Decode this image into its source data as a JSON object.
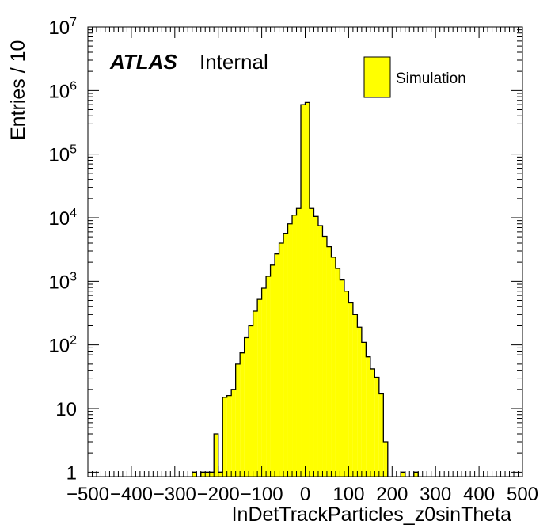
{
  "chart_data": {
    "type": "bar",
    "title": "",
    "xlabel": "InDetTrackParticles_z0sinTheta",
    "ylabel": "Entries / 10",
    "xlim": [
      -500,
      500
    ],
    "ylim": [
      0.85,
      10000000
    ],
    "yscale": "log",
    "x_ticks": [
      "−500",
      "−400",
      "−300",
      "−200",
      "−100",
      "0",
      "100",
      "200",
      "300",
      "400",
      "500"
    ],
    "y_ticks": [
      {
        "value": 1,
        "base": "1",
        "exp": ""
      },
      {
        "value": 10,
        "base": "10",
        "exp": ""
      },
      {
        "value": 100,
        "base": "10",
        "exp": "2"
      },
      {
        "value": 1000,
        "base": "10",
        "exp": "3"
      },
      {
        "value": 10000,
        "base": "10",
        "exp": "4"
      },
      {
        "value": 100000,
        "base": "10",
        "exp": "5"
      },
      {
        "value": 1000000,
        "base": "10",
        "exp": "6"
      },
      {
        "value": 10000000,
        "base": "10",
        "exp": "7"
      }
    ],
    "bin_width": 10,
    "bins": [
      {
        "x0": -260,
        "value": 1
      },
      {
        "x0": -240,
        "value": 1
      },
      {
        "x0": -230,
        "value": 1
      },
      {
        "x0": -220,
        "value": 1
      },
      {
        "x0": -210,
        "value": 4
      },
      {
        "x0": -200,
        "value": 1
      },
      {
        "x0": -190,
        "value": 15
      },
      {
        "x0": -180,
        "value": 16
      },
      {
        "x0": -170,
        "value": 20
      },
      {
        "x0": -160,
        "value": 50
      },
      {
        "x0": -150,
        "value": 75
      },
      {
        "x0": -140,
        "value": 130
      },
      {
        "x0": -130,
        "value": 200
      },
      {
        "x0": -120,
        "value": 340
      },
      {
        "x0": -110,
        "value": 520
      },
      {
        "x0": -100,
        "value": 780
      },
      {
        "x0": -90,
        "value": 1200
      },
      {
        "x0": -80,
        "value": 1800
      },
      {
        "x0": -70,
        "value": 2700
      },
      {
        "x0": -60,
        "value": 4000
      },
      {
        "x0": -50,
        "value": 5700
      },
      {
        "x0": -40,
        "value": 8000
      },
      {
        "x0": -30,
        "value": 11000
      },
      {
        "x0": -20,
        "value": 14000
      },
      {
        "x0": -10,
        "value": 600000
      },
      {
        "x0": 0,
        "value": 650000
      },
      {
        "x0": 10,
        "value": 14000
      },
      {
        "x0": 20,
        "value": 10500
      },
      {
        "x0": 30,
        "value": 7500
      },
      {
        "x0": 40,
        "value": 5100
      },
      {
        "x0": 50,
        "value": 3500
      },
      {
        "x0": 60,
        "value": 2400
      },
      {
        "x0": 70,
        "value": 1600
      },
      {
        "x0": 80,
        "value": 1050
      },
      {
        "x0": 90,
        "value": 700
      },
      {
        "x0": 100,
        "value": 460
      },
      {
        "x0": 110,
        "value": 300
      },
      {
        "x0": 120,
        "value": 190
      },
      {
        "x0": 130,
        "value": 110
      },
      {
        "x0": 140,
        "value": 65
      },
      {
        "x0": 150,
        "value": 42
      },
      {
        "x0": 160,
        "value": 31
      },
      {
        "x0": 170,
        "value": 17
      },
      {
        "x0": 180,
        "value": 3
      },
      {
        "x0": 220,
        "value": 1
      },
      {
        "x0": 250,
        "value": 1
      }
    ],
    "fill_color": "#ffff00",
    "line_color": "#000000",
    "legend": {
      "entries": [
        {
          "name": "Simulation",
          "color": "#ffff00"
        }
      ],
      "position": "top-right"
    },
    "annotations": {
      "experiment": "ATLAS",
      "status": "Internal"
    }
  }
}
